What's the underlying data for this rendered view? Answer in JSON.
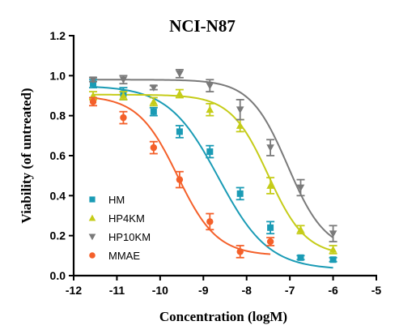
{
  "chart_data": {
    "type": "scatter",
    "title": "NCI-N87",
    "xlabel": "Concentration (logM)",
    "ylabel": "Viability (of untreated)",
    "xlim": [
      -12,
      -5
    ],
    "ylim": [
      0.0,
      1.2
    ],
    "xticks": [
      "-12",
      "-11",
      "-10",
      "-9",
      "-8",
      "-7",
      "-6",
      "-5"
    ],
    "yticks": [
      "0.0",
      "0.2",
      "0.4",
      "0.6",
      "0.8",
      "1.0",
      "1.2"
    ],
    "grid": false,
    "legend_position": "bottom-left",
    "series": [
      {
        "name": "HM",
        "marker": "square",
        "color": "#1a9bb5",
        "x": [
          -11.55,
          -10.85,
          -10.15,
          -9.55,
          -8.85,
          -8.15,
          -7.45,
          -6.75,
          -6.0
        ],
        "y": [
          0.96,
          0.91,
          0.82,
          0.72,
          0.62,
          0.41,
          0.24,
          0.09,
          0.08
        ],
        "err": [
          0.02,
          0.03,
          0.02,
          0.03,
          0.03,
          0.03,
          0.03,
          0.01,
          0.01
        ],
        "fit": {
          "top": 0.95,
          "bottom": 0.03,
          "logIC50": -8.65,
          "hill": 0.75
        }
      },
      {
        "name": "HP4KM",
        "marker": "triangle-up",
        "color": "#c5cc18",
        "x": [
          -11.55,
          -10.85,
          -10.15,
          -9.55,
          -8.85,
          -8.15,
          -7.45,
          -6.75,
          -6.0
        ],
        "y": [
          0.9,
          0.9,
          0.87,
          0.91,
          0.83,
          0.75,
          0.45,
          0.23,
          0.13
        ],
        "err": [
          0.02,
          0.02,
          0.02,
          0.02,
          0.03,
          0.03,
          0.04,
          0.02,
          0.02
        ],
        "fit": {
          "top": 0.905,
          "bottom": 0.1,
          "logIC50": -7.5,
          "hill": 1.0
        }
      },
      {
        "name": "HP10KM",
        "marker": "triangle-down",
        "color": "#7a7a7a",
        "x": [
          -11.55,
          -10.85,
          -10.15,
          -9.55,
          -8.85,
          -8.15,
          -7.45,
          -6.75,
          -6.0
        ],
        "y": [
          0.98,
          0.98,
          0.94,
          1.01,
          0.95,
          0.83,
          0.64,
          0.44,
          0.21
        ],
        "err": [
          0.01,
          0.02,
          0.01,
          0.02,
          0.03,
          0.05,
          0.04,
          0.04,
          0.04
        ],
        "fit": {
          "top": 0.98,
          "bottom": 0.12,
          "logIC50": -7.05,
          "hill": 1.0
        }
      },
      {
        "name": "MMAE",
        "marker": "circle",
        "color": "#f4602a",
        "x": [
          -11.55,
          -10.85,
          -10.15,
          -9.55,
          -8.85,
          -8.15,
          -7.45
        ],
        "y": [
          0.87,
          0.79,
          0.64,
          0.48,
          0.27,
          0.12,
          0.17
        ],
        "err": [
          0.02,
          0.03,
          0.03,
          0.04,
          0.04,
          0.03,
          0.02
        ],
        "fit": {
          "top": 0.9,
          "bottom": 0.1,
          "logIC50": -9.6,
          "hill": 0.95
        }
      }
    ]
  }
}
